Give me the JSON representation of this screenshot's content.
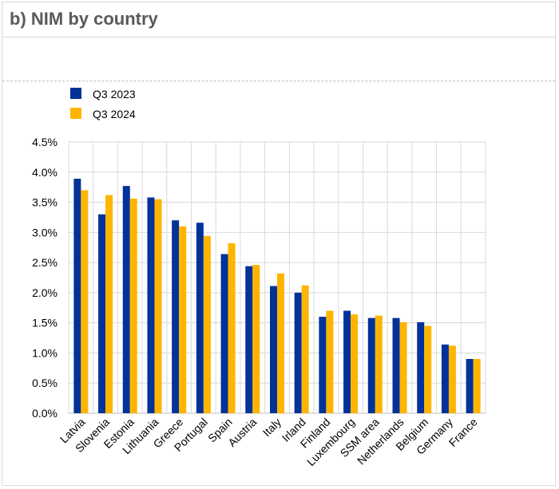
{
  "header": {
    "title": "b) NIM by country"
  },
  "colors": {
    "q3_2023": "#003299",
    "q3_2024": "#FFB400",
    "grid": "#d9d9d9",
    "axis": "#bfbfbf"
  },
  "chart_data": {
    "type": "bar",
    "title": "b) NIM by country",
    "categories": [
      "Latvia",
      "Slovenia",
      "Estonia",
      "Lithuania",
      "Greece",
      "Portugal",
      "Spain",
      "Austria",
      "Italy",
      "Irland",
      "Finland",
      "Luxembourg",
      "SSM area",
      "Netherlands",
      "Belgium",
      "Germany",
      "France"
    ],
    "series": [
      {
        "name": "Q3 2023",
        "values": [
          3.89,
          3.3,
          3.77,
          3.58,
          3.2,
          3.16,
          2.64,
          2.44,
          2.11,
          2.0,
          1.6,
          1.7,
          1.58,
          1.58,
          1.51,
          1.14,
          0.9
        ]
      },
      {
        "name": "Q3 2024",
        "values": [
          3.7,
          3.62,
          3.56,
          3.55,
          3.1,
          2.94,
          2.82,
          2.46,
          2.32,
          2.12,
          1.7,
          1.64,
          1.62,
          1.51,
          1.45,
          1.12,
          0.9
        ]
      }
    ],
    "yticks": [
      "0.0%",
      "0.5%",
      "1.0%",
      "1.5%",
      "2.0%",
      "2.5%",
      "3.0%",
      "3.5%",
      "4.0%",
      "4.5%"
    ],
    "ylim": [
      0,
      4.5
    ],
    "ytick_step": 0.5,
    "grid": true,
    "legend": "top-left"
  }
}
